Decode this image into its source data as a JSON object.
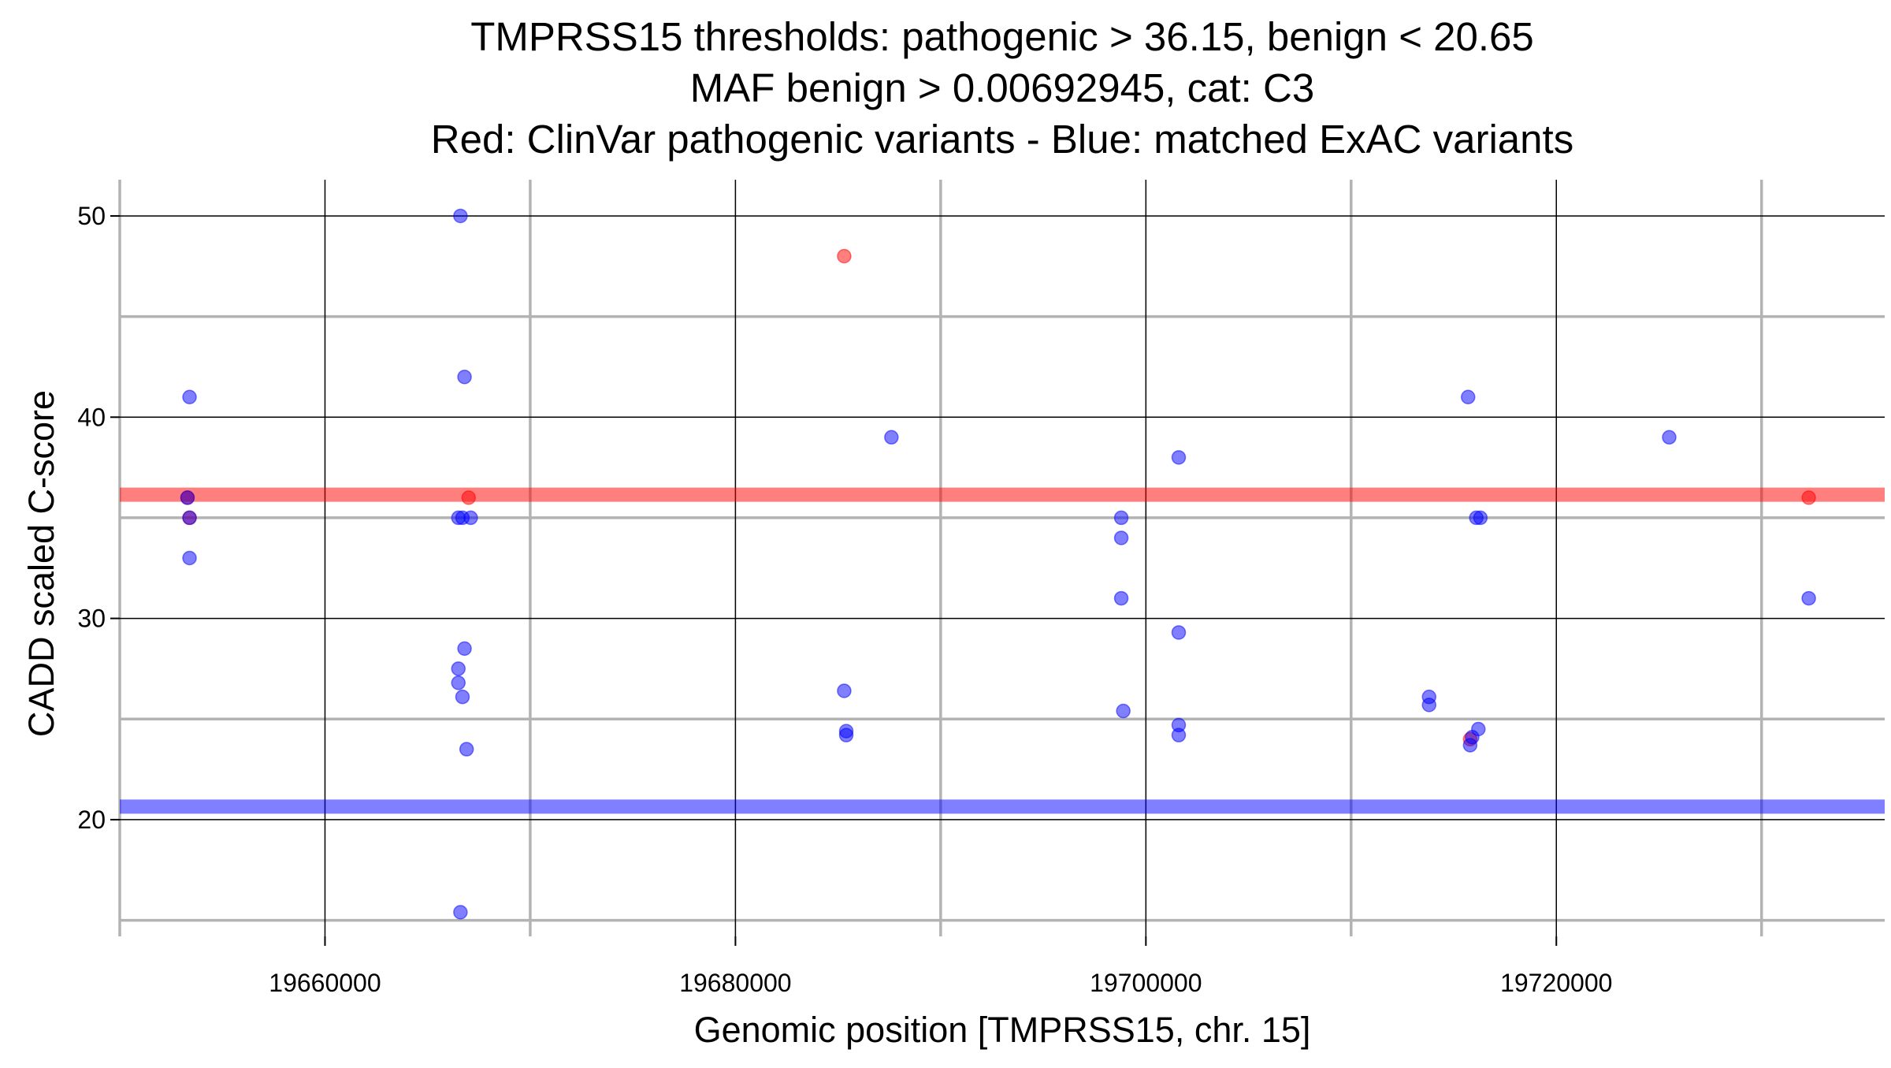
{
  "chart_data": {
    "type": "scatter",
    "title_lines": [
      "TMPRSS15 thresholds: pathogenic > 36.15, benign < 20.65",
      "MAF benign > 0.00692945, cat: C3",
      "Red: ClinVar pathogenic variants - Blue: matched ExAC variants"
    ],
    "xlabel": "Genomic position [TMPRSS15, chr. 15]",
    "ylabel": "CADD scaled C-score",
    "xlim": [
      19650000,
      19736000
    ],
    "ylim": [
      14.2,
      51.8
    ],
    "x_major_ticks": [
      19660000,
      19680000,
      19700000,
      19720000
    ],
    "x_major_tick_labels": [
      "19660000",
      "19680000",
      "19700000",
      "19720000"
    ],
    "x_minor_ticks": [
      19650000,
      19670000,
      19690000,
      19710000,
      19730000
    ],
    "y_major_ticks": [
      20,
      30,
      40,
      50
    ],
    "y_major_tick_labels": [
      "20",
      "30",
      "40",
      "50"
    ],
    "y_minor_ticks": [
      15,
      25,
      35,
      45
    ],
    "grid": true,
    "colors": {
      "pathogenic": "#ff0000",
      "benign": "#0000ff",
      "major_grid": "#000000",
      "minor_grid": "#b3b3b3"
    },
    "thresholds": [
      {
        "name": "pathogenic",
        "value": 36.15,
        "color": "#ff0000"
      },
      {
        "name": "benign",
        "value": 20.65,
        "color": "#0000ff"
      }
    ],
    "series": [
      {
        "color": "#ff0000",
        "points": [
          {
            "x": 19653300,
            "y": 36
          },
          {
            "x": 19653400,
            "y": 35
          },
          {
            "x": 19667000,
            "y": 36
          },
          {
            "x": 19685300,
            "y": 48
          },
          {
            "x": 19715800,
            "y": 24
          },
          {
            "x": 19732300,
            "y": 36
          }
        ]
      },
      {
        "color": "#0000ff",
        "points": [
          {
            "x": 19653400,
            "y": 41
          },
          {
            "x": 19653300,
            "y": 36
          },
          {
            "x": 19653400,
            "y": 35
          },
          {
            "x": 19653400,
            "y": 33
          },
          {
            "x": 19666600,
            "y": 50
          },
          {
            "x": 19666800,
            "y": 42
          },
          {
            "x": 19666500,
            "y": 35
          },
          {
            "x": 19666700,
            "y": 35
          },
          {
            "x": 19667100,
            "y": 35
          },
          {
            "x": 19666800,
            "y": 28.5
          },
          {
            "x": 19666500,
            "y": 27.5
          },
          {
            "x": 19666500,
            "y": 26.8
          },
          {
            "x": 19666700,
            "y": 26.1
          },
          {
            "x": 19666900,
            "y": 23.5
          },
          {
            "x": 19666600,
            "y": 15.4
          },
          {
            "x": 19685300,
            "y": 26.4
          },
          {
            "x": 19685400,
            "y": 24.4
          },
          {
            "x": 19685400,
            "y": 24.2
          },
          {
            "x": 19687600,
            "y": 39
          },
          {
            "x": 19698800,
            "y": 35
          },
          {
            "x": 19698800,
            "y": 34
          },
          {
            "x": 19698800,
            "y": 31
          },
          {
            "x": 19698900,
            "y": 25.4
          },
          {
            "x": 19701600,
            "y": 38
          },
          {
            "x": 19701600,
            "y": 29.3
          },
          {
            "x": 19701600,
            "y": 24.7
          },
          {
            "x": 19701600,
            "y": 24.2
          },
          {
            "x": 19713800,
            "y": 26.1
          },
          {
            "x": 19713800,
            "y": 25.7
          },
          {
            "x": 19715700,
            "y": 41
          },
          {
            "x": 19716100,
            "y": 35
          },
          {
            "x": 19716300,
            "y": 35
          },
          {
            "x": 19716200,
            "y": 24.5
          },
          {
            "x": 19715900,
            "y": 24.1
          },
          {
            "x": 19715800,
            "y": 23.7
          },
          {
            "x": 19725500,
            "y": 39
          },
          {
            "x": 19732300,
            "y": 31
          }
        ]
      }
    ]
  }
}
